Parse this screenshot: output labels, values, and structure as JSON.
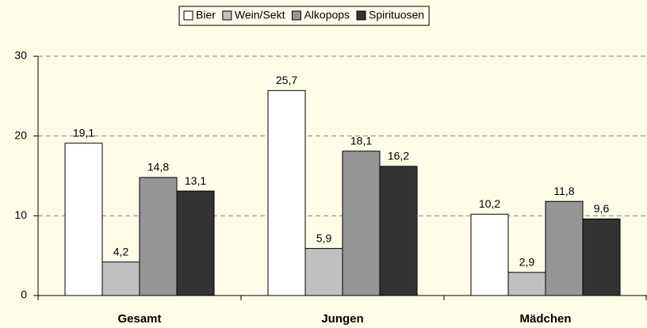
{
  "chart_data": {
    "type": "bar",
    "categories": [
      "Gesamt",
      "Jungen",
      "Mädchen"
    ],
    "series": [
      {
        "name": "Bier",
        "color": "#ffffff",
        "values": [
          19.1,
          25.7,
          10.2
        ],
        "value_labels": [
          "19,1",
          "25,7",
          "10,2"
        ]
      },
      {
        "name": "Wein/Sekt",
        "color": "#c0c0c0",
        "values": [
          4.2,
          5.9,
          2.9
        ],
        "value_labels": [
          "4,2",
          "5,9",
          "2,9"
        ]
      },
      {
        "name": "Alkopops",
        "color": "#969696",
        "values": [
          14.8,
          18.1,
          11.8
        ],
        "value_labels": [
          "14,8",
          "18,1",
          "11,8"
        ]
      },
      {
        "name": "Spirituosen",
        "color": "#333333",
        "values": [
          13.1,
          16.2,
          9.6
        ],
        "value_labels": [
          "13,1",
          "16,2",
          "9,6"
        ]
      }
    ],
    "ylim": [
      0,
      30
    ],
    "yticks": [
      0,
      10,
      20,
      30
    ],
    "grid": true,
    "legend": "top"
  }
}
